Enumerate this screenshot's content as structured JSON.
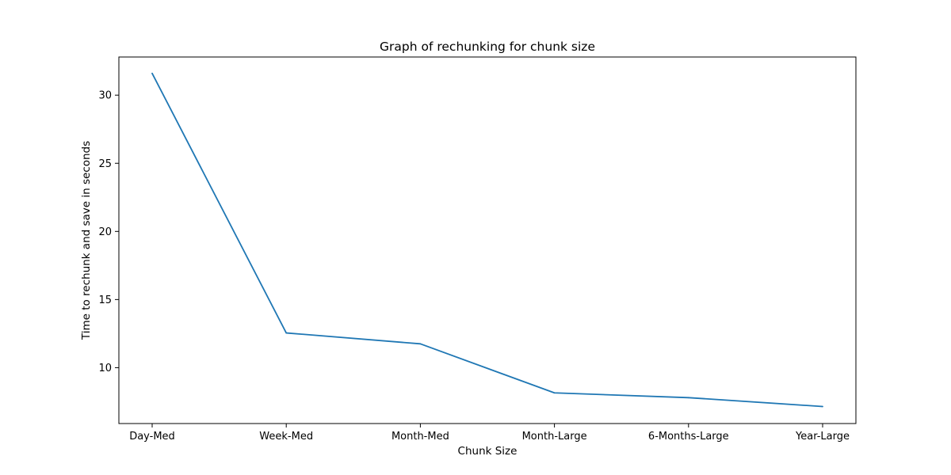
{
  "chart_data": {
    "type": "line",
    "title": "Graph of rechunking for chunk size",
    "xlabel": "Chunk Size",
    "ylabel": "Time to rechunk and save in seconds",
    "categories": [
      "Day-Med",
      "Week-Med",
      "Month-Med",
      "Month-Large",
      "6-Months-Large",
      "Year-Large"
    ],
    "series": [
      {
        "values": [
          31.6,
          12.55,
          11.75,
          8.15,
          7.8,
          7.15
        ]
      }
    ],
    "ylim": [
      5.9,
      32.8
    ],
    "yticks": [
      10,
      15,
      20,
      25,
      30
    ],
    "grid": false,
    "colors": {
      "line": "#1f77b4",
      "axis": "#000000"
    }
  }
}
